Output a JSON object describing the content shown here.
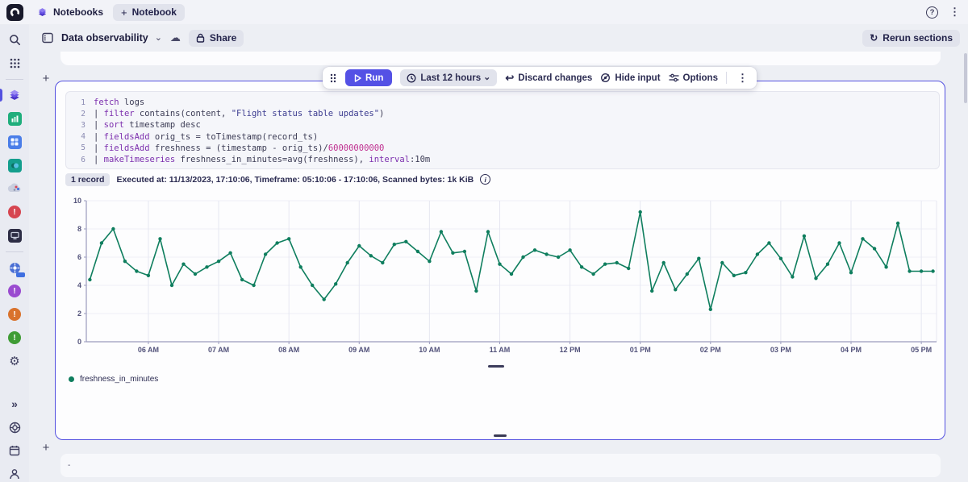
{
  "top_bar": {
    "notebooks_label": "Notebooks",
    "new_notebook_tab": "Notebook"
  },
  "toolbar": {
    "title": "Data observability",
    "share_label": "Share",
    "rerun_label": "Rerun sections"
  },
  "section_toolbar": {
    "run_label": "Run",
    "timeframe_label": "Last 12 hours",
    "discard_label": "Discard changes",
    "hide_input_label": "Hide input",
    "options_label": "Options"
  },
  "icons": {
    "plus": "+",
    "chevron_down": "⌄",
    "kebab": "⋮",
    "help": "?",
    "info": "i",
    "undo": "↩",
    "refresh": "↻",
    "cloud": "☁",
    "gear": "⚙",
    "double_chevron": "»"
  },
  "code": {
    "lines": [
      {
        "n": "1",
        "tokens": [
          {
            "c": "kw",
            "t": "fetch"
          },
          {
            "c": "pl",
            "t": " logs"
          }
        ]
      },
      {
        "n": "2",
        "tokens": [
          {
            "c": "pl",
            "t": "| "
          },
          {
            "c": "kw",
            "t": "filter"
          },
          {
            "c": "pl",
            "t": " contains(content, "
          },
          {
            "c": "str",
            "t": "\"Flight status table updates\""
          },
          {
            "c": "pl",
            "t": ")"
          }
        ]
      },
      {
        "n": "3",
        "tokens": [
          {
            "c": "pl",
            "t": "| "
          },
          {
            "c": "kw",
            "t": "sort"
          },
          {
            "c": "pl",
            "t": " timestamp desc"
          }
        ]
      },
      {
        "n": "4",
        "tokens": [
          {
            "c": "pl",
            "t": "| "
          },
          {
            "c": "kw",
            "t": "fieldsAdd"
          },
          {
            "c": "pl",
            "t": " orig_ts = toTimestamp(record_ts)"
          }
        ]
      },
      {
        "n": "5",
        "tokens": [
          {
            "c": "pl",
            "t": "| "
          },
          {
            "c": "kw",
            "t": "fieldsAdd"
          },
          {
            "c": "pl",
            "t": " freshness = (timestamp - orig_ts)/"
          },
          {
            "c": "num",
            "t": "60000000000"
          }
        ]
      },
      {
        "n": "6",
        "tokens": [
          {
            "c": "pl",
            "t": "| "
          },
          {
            "c": "kw",
            "t": "makeTimeseries"
          },
          {
            "c": "pl",
            "t": " freshness_in_minutes=avg(freshness), "
          },
          {
            "c": "kw",
            "t": "interval"
          },
          {
            "c": "pl",
            "t": ":10m"
          }
        ]
      }
    ]
  },
  "result": {
    "badge": "1 record",
    "meta": "Executed at: 11/13/2023, 17:10:06, Timeframe: 05:10:06 - 17:10:06, Scanned bytes: 1k KiB"
  },
  "next_section": {
    "placeholder": "-"
  },
  "colors": {
    "accent": "#5451e5",
    "chart_line": "#0f7e5e",
    "grid": "#e6e7f1",
    "axis": "#9b9cbd"
  },
  "chart_data": {
    "type": "line",
    "title": "",
    "xlabel": "",
    "ylabel": "",
    "ylim": [
      0,
      10
    ],
    "y_ticks": [
      0,
      2,
      4,
      6,
      8,
      10
    ],
    "grid": true,
    "legend_position": "bottom-left",
    "x_start_minutes": 310,
    "x_interval_minutes": 10,
    "x_domain_minutes": [
      307,
      1033
    ],
    "x_ticks": [
      {
        "minute": 360,
        "label": "06 AM"
      },
      {
        "minute": 420,
        "label": "07 AM"
      },
      {
        "minute": 480,
        "label": "08 AM"
      },
      {
        "minute": 540,
        "label": "09 AM"
      },
      {
        "minute": 600,
        "label": "10 AM"
      },
      {
        "minute": 660,
        "label": "11 AM"
      },
      {
        "minute": 720,
        "label": "12 PM"
      },
      {
        "minute": 780,
        "label": "01 PM"
      },
      {
        "minute": 840,
        "label": "02 PM"
      },
      {
        "minute": 900,
        "label": "03 PM"
      },
      {
        "minute": 960,
        "label": "04 PM"
      },
      {
        "minute": 1020,
        "label": "05 PM"
      }
    ],
    "series": [
      {
        "name": "freshness_in_minutes",
        "color": "#0f7e5e",
        "values": [
          4.4,
          7.0,
          8.0,
          5.7,
          5.0,
          4.7,
          7.3,
          4.0,
          5.5,
          4.8,
          5.3,
          5.7,
          6.3,
          4.4,
          4.0,
          6.2,
          7.0,
          7.3,
          5.3,
          4.0,
          3.0,
          4.1,
          5.6,
          6.8,
          6.1,
          5.6,
          6.9,
          7.1,
          6.4,
          5.7,
          7.8,
          6.3,
          6.4,
          3.6,
          7.8,
          5.5,
          4.8,
          6.0,
          6.5,
          6.2,
          6.0,
          6.5,
          5.3,
          4.8,
          5.5,
          5.6,
          5.2,
          9.2,
          3.6,
          5.6,
          3.7,
          4.8,
          5.9,
          2.3,
          5.6,
          4.7,
          4.9,
          6.2,
          7.0,
          5.9,
          4.6,
          7.5,
          4.5,
          5.5,
          7.0,
          4.9,
          7.3,
          6.6,
          5.3,
          8.4,
          5.0,
          5.0,
          5.0
        ]
      }
    ]
  }
}
